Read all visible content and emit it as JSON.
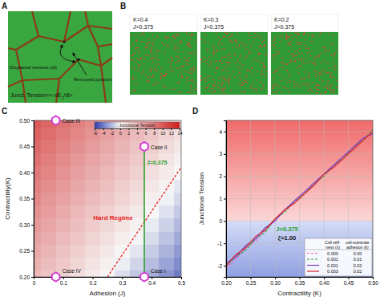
{
  "panel_labels": [
    "A",
    "B",
    "C",
    "D"
  ],
  "panel_a": {
    "removed": "Removed junction",
    "displaced": "Displaced vertices (dl)",
    "tension": [
      "Junct. Tension=<-dE",
      "J",
      "/dl>"
    ]
  },
  "panel_b": [
    {
      "k": "K=0.4",
      "j": "J=0.375"
    },
    {
      "k": "K=0.3",
      "j": "J=0.375"
    },
    {
      "k": "K=0.2",
      "j": "J=0.375"
    }
  ],
  "chart_data": [
    {
      "type": "heatmap",
      "x_label": "Adhesion (J)",
      "y_label": "Contractility(K)",
      "x": [
        0,
        0.05,
        0.1,
        0.15,
        0.2,
        0.25,
        0.3,
        0.35,
        0.4,
        0.45,
        0.5
      ],
      "y": [
        0.2,
        0.225,
        0.25,
        0.275,
        0.3,
        0.325,
        0.35,
        0.375,
        0.4,
        0.425,
        0.45,
        0.475,
        0.5
      ],
      "cells": [
        [
          4,
          3.2,
          2.4,
          1.6,
          0.8,
          0,
          -0.8,
          -1.6,
          -2.4,
          -3.2,
          -4
        ],
        [
          4.5,
          3.7,
          2.9,
          2.1,
          1.3,
          0.5,
          -0.3,
          -1.1,
          -1.9,
          -2.7,
          -3.5
        ],
        [
          5,
          4.2,
          3.4,
          2.6,
          1.8,
          1,
          0.2,
          -0.6,
          -1.4,
          -2.2,
          -3
        ],
        [
          5.5,
          4.7,
          3.9,
          3.1,
          2.3,
          1.5,
          0.7,
          -0.1,
          -0.9,
          -1.7,
          -2.5
        ],
        [
          6,
          5.2,
          4.4,
          3.6,
          2.8,
          2,
          1.2,
          0.4,
          -0.4,
          -1.2,
          -2
        ],
        [
          6.5,
          5.7,
          4.9,
          4.1,
          3.3,
          2.5,
          1.7,
          0.9,
          0.1,
          -0.7,
          -1.5
        ],
        [
          7,
          6.2,
          5.4,
          4.6,
          3.8,
          3,
          2.2,
          1.4,
          0.6,
          -0.2,
          -1
        ],
        [
          7.5,
          6.7,
          5.9,
          5.1,
          4.3,
          3.5,
          2.7,
          1.9,
          1.1,
          0.3,
          -0.5
        ],
        [
          8,
          7.2,
          6.4,
          5.6,
          4.8,
          4,
          3.2,
          2.4,
          1.6,
          0.8,
          0
        ],
        [
          8.5,
          7.7,
          6.9,
          6.1,
          5.3,
          4.5,
          3.7,
          2.9,
          2.1,
          1.3,
          0.5
        ],
        [
          9,
          8.2,
          7.4,
          6.6,
          5.8,
          5,
          4.2,
          3.4,
          2.6,
          1.8,
          1
        ],
        [
          9.5,
          8.7,
          7.9,
          7.1,
          6.3,
          5.5,
          4.7,
          3.9,
          3.1,
          2.3,
          1.5
        ],
        [
          10,
          9.2,
          8.4,
          7.6,
          6.8,
          6,
          5.2,
          4.4,
          3.6,
          2.8,
          2
        ]
      ],
      "xlim": [
        0,
        0.5
      ],
      "ylim": [
        0.2,
        0.5
      ],
      "xticks": [
        0,
        0.1,
        0.2,
        0.3,
        0.4,
        0.5
      ],
      "yticks": [
        {
          "value": 0.2,
          "label": "0.20"
        },
        {
          "value": 0.25,
          "label": "0.25"
        },
        {
          "value": 0.3,
          "label": "0.30"
        },
        {
          "value": 0.35,
          "label": "0.35"
        },
        {
          "value": 0.4,
          "label": "0.40"
        },
        {
          "value": 0.45,
          "label": "0.45"
        },
        {
          "value": 0.5,
          "label": "0.50"
        }
      ],
      "colorbar": {
        "title": "Junctional Tension",
        "range": [
          -6,
          14
        ],
        "ticks": [
          -6,
          -4,
          -2,
          0,
          2,
          4,
          6,
          8,
          10,
          12,
          14
        ]
      },
      "cases": [
        {
          "label": "Case I",
          "x": 0.375,
          "y": 0.2
        },
        {
          "label": "Case II",
          "x": 0.375,
          "y": 0.45
        },
        {
          "label": "Case III",
          "x": 0.075,
          "y": 0.5
        },
        {
          "label": "Case IV",
          "x": 0.075,
          "y": 0.2
        }
      ],
      "reference_line": {
        "label": "J=0.375",
        "x": 0.375,
        "y": [
          0.2,
          0.45
        ],
        "color": "#2ca02c"
      },
      "boundary": {
        "label": "Hard Regime",
        "x": [
          0.25,
          0.5
        ],
        "y": [
          0.2,
          0.41
        ],
        "color": "#e8201a",
        "line_style": "dashed"
      }
    },
    {
      "type": "line",
      "x_label": "Contractility (K)",
      "y_label": "Junctional Tension",
      "x": [
        0.2,
        0.22,
        0.24,
        0.26,
        0.28,
        0.3,
        0.32,
        0.34,
        0.36,
        0.38,
        0.4,
        0.42,
        0.44,
        0.46,
        0.48,
        0.5
      ],
      "series": [
        {
          "color": "#ff55cc",
          "line_style": "dashed",
          "values": [
            -2.1,
            -1.7,
            -1.2,
            -0.9,
            -0.4,
            0.0,
            0.5,
            0.8,
            1.3,
            1.6,
            2.1,
            2.4,
            2.9,
            3.2,
            3.7,
            4.0
          ]
        },
        {
          "color": "#2ca02c",
          "line_style": "dashed",
          "values": [
            -2.0,
            -1.6,
            -1.3,
            -0.8,
            -0.5,
            0.1,
            0.4,
            0.9,
            1.2,
            1.7,
            2.0,
            2.5,
            2.8,
            3.3,
            3.6,
            4.1
          ]
        },
        {
          "color": "#7a3fc8",
          "line_style": "solid",
          "values": [
            -1.9,
            -1.6,
            -1.1,
            -0.8,
            -0.3,
            0.0,
            0.5,
            0.9,
            1.3,
            1.7,
            2.1,
            2.5,
            2.9,
            3.3,
            3.7,
            3.9
          ]
        },
        {
          "color": "#d62728",
          "line_style": "solid",
          "values": [
            -2.0,
            -1.5,
            -1.2,
            -0.7,
            -0.4,
            0.1,
            0.5,
            0.8,
            1.2,
            1.6,
            2.1,
            2.4,
            2.8,
            3.2,
            3.6,
            4.0
          ]
        }
      ],
      "xlim": [
        0.2,
        0.5
      ],
      "ylim": [
        -2.5,
        4.5
      ],
      "xticks": [
        {
          "value": 0.2,
          "label": "0.20"
        },
        {
          "value": 0.25,
          "label": "0.25"
        },
        {
          "value": 0.3,
          "label": "0.30"
        },
        {
          "value": 0.35,
          "label": "0.35"
        },
        {
          "value": 0.4,
          "label": "0.40"
        },
        {
          "value": 0.45,
          "label": "0.45"
        },
        {
          "value": 0.5,
          "label": "0.50"
        }
      ],
      "yticks": [
        -2,
        -1,
        0,
        1,
        2,
        3,
        4
      ],
      "grid": true,
      "annotations": [
        "J=0.375",
        "ζ=1.00"
      ],
      "legend_table": {
        "headers": [
          [
            "Cell stiff-",
            "ness (λ)"
          ],
          [
            "cell-substrate",
            "adhesion (k)"
          ]
        ],
        "rows": [
          [
            "0.000",
            "0.00"
          ],
          [
            "0.001",
            "0.01"
          ],
          [
            "0.001",
            "0.02"
          ],
          [
            "0.003",
            "0.02"
          ]
        ]
      }
    }
  ]
}
